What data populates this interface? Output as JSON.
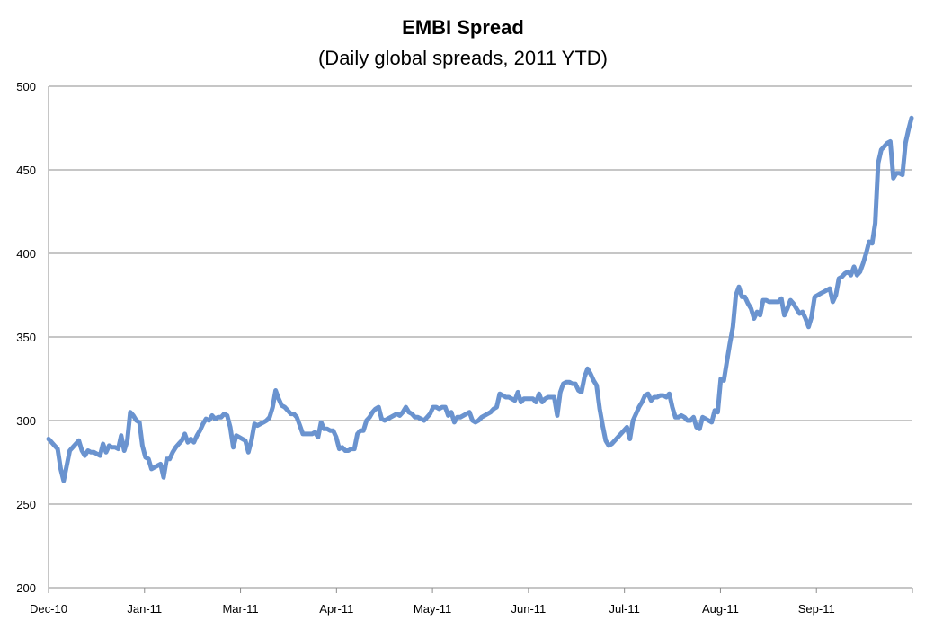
{
  "chart_data": {
    "type": "line",
    "title": "EMBI Spread",
    "subtitle": "(Daily global spreads, 2011 YTD)",
    "xlabel": "",
    "ylabel": "",
    "ylim": [
      200,
      500
    ],
    "yticks": [
      "200",
      "250",
      "300",
      "350",
      "400",
      "450",
      "500"
    ],
    "xticks": [
      "Dec-10",
      "Jan-11",
      "Mar-11",
      "Apr-11",
      "May-11",
      "Jun-11",
      "Jul-11",
      "Aug-11",
      "Sep-11"
    ],
    "grid": true,
    "legend": "none",
    "line_color": "#6a93cf",
    "series": [
      {
        "values": [
          289,
          287,
          285,
          283,
          271,
          264,
          273,
          282,
          284,
          286,
          288,
          282,
          279,
          282,
          281,
          281,
          280,
          279,
          286,
          281,
          285,
          284,
          284,
          283,
          291,
          282,
          288,
          305,
          303,
          300,
          299,
          285,
          278,
          277,
          271,
          272,
          273,
          274,
          266,
          277,
          277,
          281,
          284,
          286,
          288,
          292,
          287,
          289,
          287,
          291,
          294,
          298,
          301,
          300,
          303,
          301,
          302,
          302,
          304,
          303,
          296,
          284,
          291,
          290,
          289,
          288,
          281,
          288,
          298,
          297,
          298,
          299,
          300,
          302,
          308,
          318,
          313,
          309,
          308,
          306,
          304,
          304,
          302,
          297,
          292,
          292,
          292,
          292,
          293,
          290,
          299,
          295,
          295,
          294,
          294,
          290,
          283,
          284,
          282,
          282,
          283,
          283,
          292,
          294,
          294,
          300,
          302,
          305,
          307,
          308,
          301,
          300,
          301,
          302,
          303,
          304,
          303,
          305,
          308,
          305,
          304,
          302,
          302,
          301,
          300,
          302,
          304,
          308,
          308,
          307,
          308,
          308,
          303,
          305,
          299,
          302,
          302,
          303,
          304,
          305,
          300,
          299,
          300,
          302,
          303,
          304,
          305,
          307,
          308,
          316,
          315,
          314,
          314,
          313,
          312,
          317,
          311,
          313,
          313,
          313,
          313,
          311,
          316,
          311,
          313,
          314,
          314,
          314,
          303,
          317,
          322,
          323,
          323,
          322,
          322,
          318,
          317,
          326,
          331,
          328,
          324,
          321,
          307,
          297,
          288,
          285,
          286,
          288,
          290,
          292,
          294,
          296,
          289,
          300,
          304,
          308,
          311,
          315,
          316,
          312,
          314,
          314,
          315,
          315,
          314,
          316,
          308,
          302,
          302,
          303,
          302,
          300,
          300,
          302,
          296,
          295,
          302,
          301,
          300,
          299,
          306,
          305,
          325,
          324,
          335,
          346,
          356,
          375,
          380,
          374,
          374,
          370,
          367,
          361,
          365,
          363,
          372,
          372,
          371,
          371,
          371,
          371,
          373,
          363,
          367,
          372,
          370,
          367,
          364,
          365,
          361,
          356,
          362,
          374,
          375,
          376,
          377,
          378,
          379,
          371,
          375,
          385,
          386,
          388,
          389,
          387,
          392,
          387,
          389,
          394,
          400,
          407,
          406,
          418,
          454,
          462,
          464,
          466,
          467,
          445,
          448,
          448,
          447,
          466,
          474,
          481
        ]
      }
    ]
  }
}
